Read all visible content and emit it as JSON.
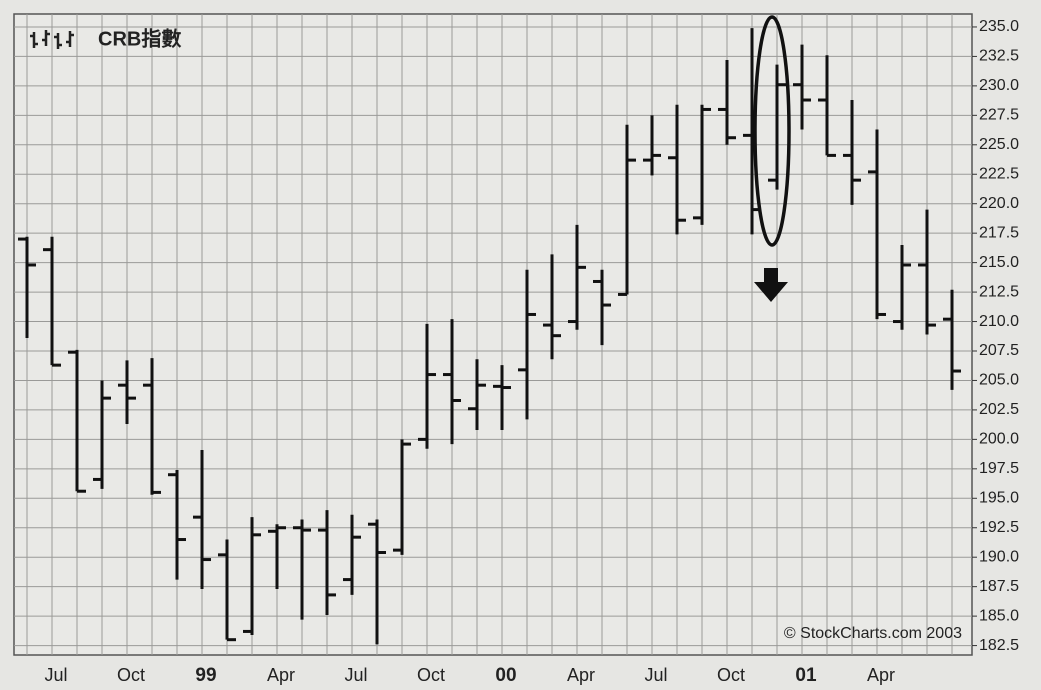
{
  "chart_data": {
    "type": "ohlc",
    "title": "CRB指數",
    "source": "© StockCharts.com 2003",
    "categories": [
      null,
      "Jul",
      null,
      null,
      "Oct",
      null,
      null,
      "99",
      null,
      null,
      "Apr",
      null,
      null,
      "Jul",
      null,
      null,
      "Oct",
      null,
      null,
      "00",
      null,
      null,
      "Apr",
      null,
      null,
      "Jul",
      null,
      null,
      "Oct",
      null,
      null,
      "01",
      null,
      null,
      "Apr",
      null,
      null,
      null
    ],
    "open": [
      217.0,
      216.1,
      207.4,
      196.6,
      204.6,
      204.6,
      197.0,
      193.4,
      190.2,
      183.7,
      192.2,
      192.5,
      192.3,
      188.1,
      192.8,
      190.6,
      200.0,
      205.5,
      202.6,
      204.5,
      205.9,
      209.7,
      210.0,
      213.4,
      212.3,
      223.7,
      223.9,
      218.8,
      228.0,
      225.8,
      222.0,
      230.1,
      228.8,
      224.1,
      222.7,
      210.0,
      214.8,
      210.2
    ],
    "high": [
      217.2,
      217.2,
      207.6,
      205.0,
      206.7,
      206.9,
      197.4,
      199.1,
      191.5,
      193.4,
      192.8,
      193.2,
      194.0,
      193.6,
      193.2,
      200.0,
      209.8,
      210.2,
      206.8,
      206.3,
      214.4,
      215.7,
      218.2,
      214.4,
      226.7,
      227.5,
      228.4,
      228.4,
      232.2,
      234.9,
      231.8,
      233.5,
      232.6,
      228.8,
      226.3,
      216.5,
      219.5,
      212.7
    ],
    "low": [
      208.6,
      206.3,
      195.6,
      195.8,
      201.3,
      195.3,
      188.1,
      187.3,
      183.0,
      183.4,
      187.3,
      184.7,
      185.1,
      186.8,
      182.6,
      190.2,
      199.2,
      199.6,
      200.8,
      200.8,
      201.7,
      206.8,
      209.3,
      208.0,
      212.3,
      222.4,
      217.4,
      218.2,
      225.0,
      217.4,
      221.2,
      226.3,
      224.1,
      219.9,
      210.2,
      209.3,
      208.9,
      204.2
    ],
    "close": [
      214.8,
      206.3,
      195.6,
      203.5,
      203.5,
      195.5,
      191.5,
      189.8,
      183.0,
      191.9,
      192.5,
      192.3,
      186.8,
      191.7,
      190.4,
      199.6,
      205.5,
      203.3,
      204.6,
      204.4,
      210.6,
      208.8,
      214.6,
      211.4,
      223.7,
      224.1,
      218.6,
      228.0,
      225.6,
      219.5,
      230.1,
      228.8,
      224.1,
      222.0,
      210.6,
      214.8,
      209.7,
      205.8
    ],
    "color": "#111111",
    "ylim": [
      181.7,
      236.1
    ],
    "yticks": [
      {
        "value": 182.5,
        "label": "182.5"
      },
      {
        "value": 185,
        "label": "185.0"
      },
      187.5,
      {
        "value": 190,
        "label": "190.0"
      },
      192.5,
      {
        "value": 195,
        "label": "195.0"
      },
      197.5,
      {
        "value": 200,
        "label": "200.0"
      },
      202.5,
      {
        "value": 205,
        "label": "205.0"
      },
      207.5,
      {
        "value": 210,
        "label": "210.0"
      },
      212.5,
      {
        "value": 215,
        "label": "215.0"
      },
      217.5,
      {
        "value": 220,
        "label": "220.0"
      },
      222.5,
      {
        "value": 225,
        "label": "225.0"
      },
      227.5,
      {
        "value": 230,
        "label": "230.0"
      },
      232.5,
      {
        "value": 235,
        "label": "235.0"
      }
    ],
    "grid": true
  }
}
